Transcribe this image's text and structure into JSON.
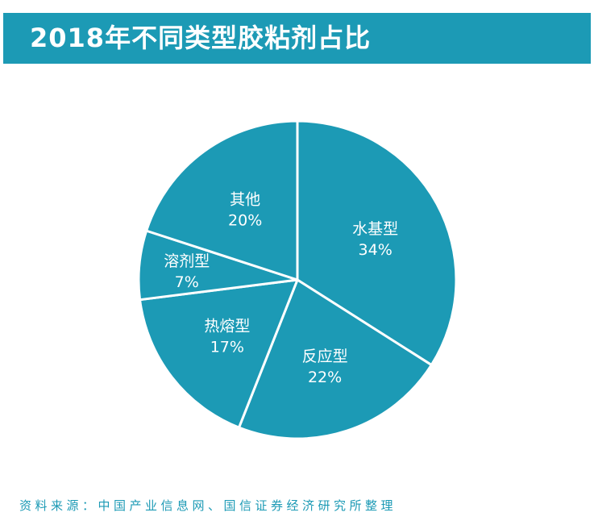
{
  "header": {
    "title": "2018年不同类型胶粘剂占比"
  },
  "chart_data": {
    "type": "pie",
    "title": "2018年不同类型胶粘剂占比",
    "slices": [
      {
        "label": "水基型",
        "value": 34,
        "value_label": "34%"
      },
      {
        "label": "反应型",
        "value": 22,
        "value_label": "22%"
      },
      {
        "label": "热熔型",
        "value": 17,
        "value_label": "17%"
      },
      {
        "label": "溶剂型",
        "value": 7,
        "value_label": "7%"
      },
      {
        "label": "其他",
        "value": 20,
        "value_label": "20%"
      }
    ],
    "slice_color": "#1c9ab5",
    "border_color": "#ffffff",
    "start": "12 o'clock",
    "direction": "clockwise"
  },
  "footer": {
    "source": "资料来源：中国产业信息网、国信证券经济研究所整理"
  }
}
